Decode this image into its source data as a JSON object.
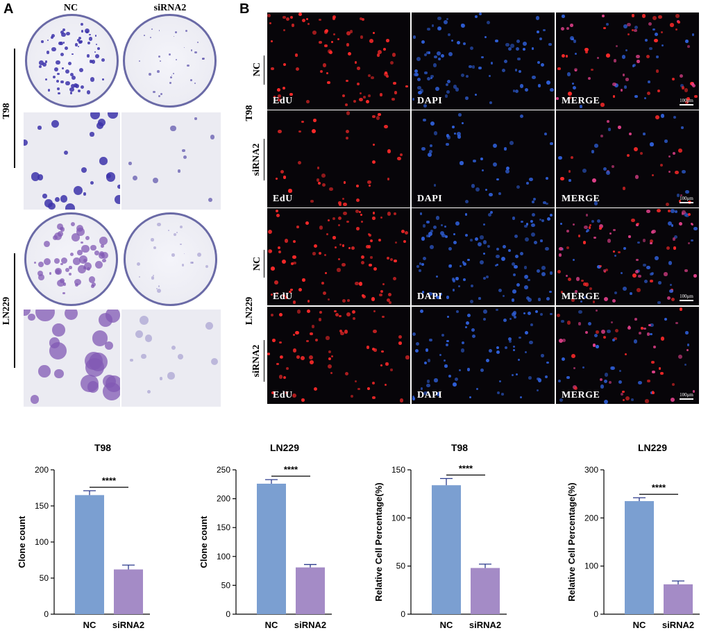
{
  "panel_a": {
    "letter": "A",
    "columns": [
      "NC",
      "siRNA2"
    ],
    "rows": [
      "T98",
      "LN229"
    ]
  },
  "panel_b": {
    "letter": "B",
    "channels": [
      "EdU",
      "DAPI",
      "MERGE"
    ],
    "scale_bar": "100μm",
    "rows": [
      {
        "cell_line": "T98",
        "condition": "NC"
      },
      {
        "cell_line": "T98",
        "condition": "siRNA2"
      },
      {
        "cell_line": "LN229",
        "condition": "NC"
      },
      {
        "cell_line": "LN229",
        "condition": "siRNA2"
      }
    ],
    "group_labels": [
      "T98",
      "LN229"
    ]
  },
  "colors": {
    "nc_bar": "#7b9fd1",
    "sirna_bar": "#a48bc6",
    "error_bar": "#2b3a8c",
    "crystal_violet": "#4b3c9e",
    "edu_red": "#ff2a2a",
    "dapi_blue": "#2f5fd8"
  },
  "chart_data": [
    {
      "type": "bar",
      "title": "T98",
      "categories": [
        "NC",
        "siRNA2"
      ],
      "values": [
        165,
        62
      ],
      "errors": [
        6,
        6
      ],
      "ylabel": "Clone count",
      "ylim": [
        0,
        200
      ],
      "yticks": [
        "0",
        "50",
        "100",
        "150",
        "200"
      ],
      "significance": "****"
    },
    {
      "type": "bar",
      "title": "LN229",
      "categories": [
        "NC",
        "siRNA2"
      ],
      "values": [
        226,
        81
      ],
      "errors": [
        7,
        5
      ],
      "ylabel": "Clone count",
      "ylim": [
        0,
        250
      ],
      "yticks": [
        "0",
        "50",
        "100",
        "150",
        "200",
        "250"
      ],
      "significance": "****"
    },
    {
      "type": "bar",
      "title": "T98",
      "categories": [
        "NC",
        "siRNA2"
      ],
      "values": [
        134,
        48
      ],
      "errors": [
        7,
        4
      ],
      "ylabel": "Relative Cell Percentage(%)",
      "ylim": [
        0,
        150
      ],
      "yticks": [
        "0",
        "50",
        "100",
        "150"
      ],
      "significance": "****"
    },
    {
      "type": "bar",
      "title": "LN229",
      "categories": [
        "NC",
        "siRNA2"
      ],
      "values": [
        235,
        62
      ],
      "errors": [
        7,
        7
      ],
      "ylabel": "Relative Cell Percentage(%)",
      "ylim": [
        0,
        300
      ],
      "yticks": [
        "0",
        "100",
        "200",
        "300"
      ],
      "significance": "****"
    }
  ]
}
